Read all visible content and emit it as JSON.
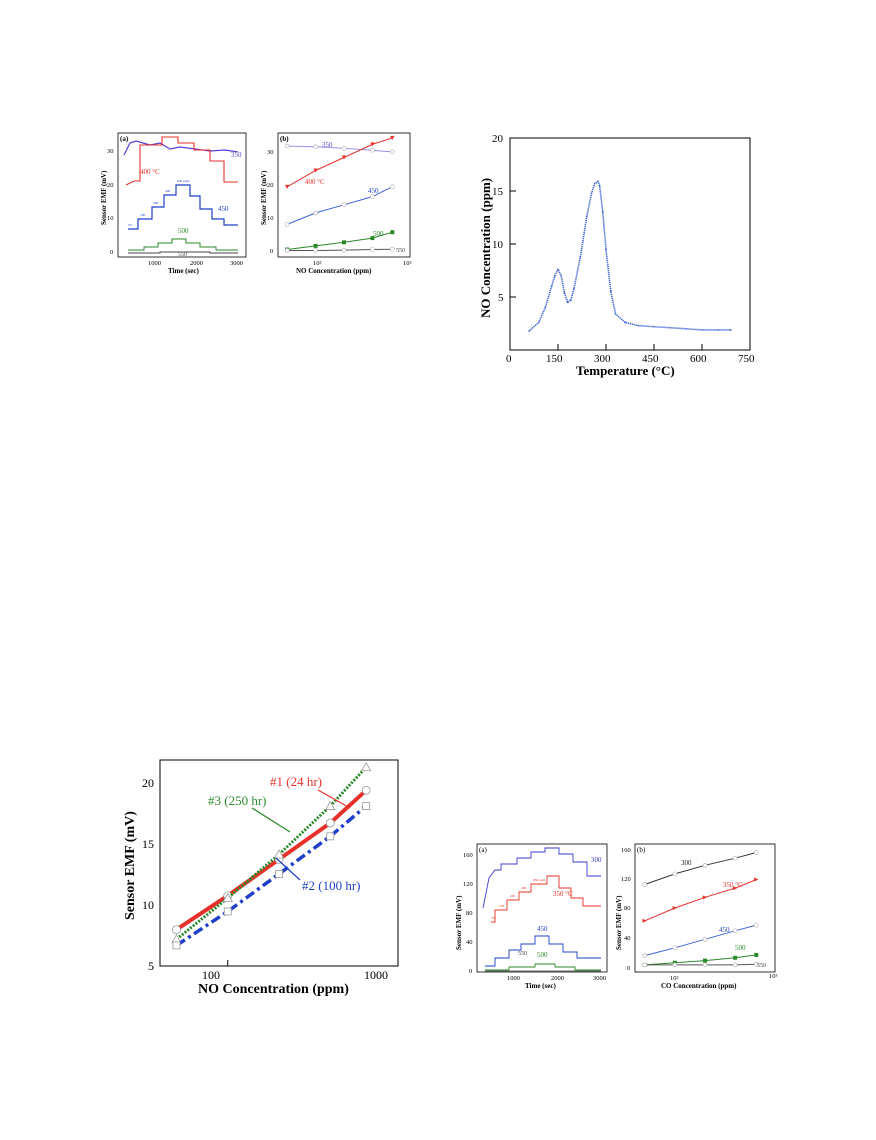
{
  "fig1": {
    "a": {
      "panel_label": "(a)",
      "ylabel": "Sensor EMF (mV)",
      "xlabel": "Time (sec)",
      "xticks": [
        "1000",
        "2000",
        "3000"
      ],
      "yticks": [
        "0",
        "10",
        "20",
        "30"
      ],
      "curve_labels": [
        "350",
        "400 °C",
        "450",
        "500",
        "550"
      ],
      "step_labels": [
        "50",
        "100",
        "200",
        "400",
        "650 ppm"
      ],
      "colors": [
        "#5b3fd6",
        "#e8302a",
        "#1f3fc9",
        "#2a8a2a",
        "#444444"
      ]
    },
    "b": {
      "panel_label": "(b)",
      "ylabel": "Sensor EMF (mV)",
      "xlabel": "NO Concentration (ppm)",
      "xticks": [
        "10²",
        "10³"
      ],
      "yticks": [
        "0",
        "10",
        "20",
        "30"
      ],
      "labels": [
        "350",
        "400 °C",
        "450",
        "500",
        "550"
      ]
    }
  },
  "fig2": {
    "ylabel": "NO Concentration (ppm)",
    "xlabel": "Temperature (°C)",
    "xticks": [
      "0",
      "150",
      "300",
      "450",
      "600",
      "750"
    ],
    "yticks": [
      "5",
      "10",
      "15",
      "20"
    ]
  },
  "fig3": {
    "ylabel": "Sensor EMF (mV)",
    "xlabel": "NO Concentration  (ppm)",
    "xticks": [
      "100",
      "1000"
    ],
    "yticks": [
      "5",
      "10",
      "15",
      "20"
    ],
    "labels": [
      "#1 (24 hr)",
      "#3 (250 hr)",
      "#2 (100 hr)"
    ]
  },
  "fig4": {
    "a": {
      "panel_label": "(a)",
      "ylabel": "Sensor EMF (mV)",
      "xlabel": "Time (sec)",
      "xticks": [
        "1000",
        "2000",
        "3000"
      ],
      "yticks": [
        "0",
        "40",
        "80",
        "120",
        "160"
      ],
      "curve_labels": [
        "300",
        "350 °C",
        "450",
        "500",
        "550"
      ],
      "step_labels": [
        "50",
        "100",
        "200",
        "400",
        "650 ppm"
      ]
    },
    "b": {
      "panel_label": "(b)",
      "ylabel": "Sensor EMF (mV)",
      "xlabel": "CO Concentration (ppm)",
      "xticks": [
        "10²",
        "10³"
      ],
      "yticks": [
        "0",
        "40",
        "80",
        "120",
        "160"
      ],
      "labels": [
        "300",
        "350 °C",
        "450",
        "500",
        "550"
      ]
    }
  },
  "chart_data": [
    {
      "type": "line",
      "id": "fig1b",
      "title": "",
      "xlabel": "NO Concentration (ppm)",
      "ylabel": "Sensor EMF (mV)",
      "xscale": "log",
      "xlim": [
        40,
        1000
      ],
      "ylim": [
        -2,
        36
      ],
      "x": [
        50,
        100,
        200,
        400,
        650
      ],
      "series": [
        {
          "name": "350",
          "values": [
            32,
            31.8,
            31.3,
            30.7,
            30.2
          ],
          "color": "#9e8fe6"
        },
        {
          "name": "400 °C",
          "values": [
            19.5,
            24.5,
            28.5,
            32.5,
            34.5
          ],
          "color": "#e8302a"
        },
        {
          "name": "450",
          "values": [
            8,
            11.5,
            14,
            16.5,
            19.5
          ],
          "color": "#3f62d6"
        },
        {
          "name": "500",
          "values": [
            0.3,
            1.4,
            2.5,
            3.8,
            5.6
          ],
          "color": "#2a8a2a"
        },
        {
          "name": "550",
          "values": [
            0,
            0,
            0.1,
            0.3,
            0.4
          ],
          "color": "#555555"
        }
      ]
    },
    {
      "type": "line",
      "id": "fig2",
      "title": "",
      "xlabel": "Temperature (°C)",
      "ylabel": "NO Concentration (ppm)",
      "xlim": [
        0,
        750
      ],
      "ylim": [
        0,
        20
      ],
      "x": [
        60,
        90,
        110,
        130,
        140,
        150,
        160,
        170,
        180,
        190,
        200,
        220,
        240,
        255,
        265,
        275,
        280,
        290,
        300,
        315,
        330,
        360,
        400,
        450,
        500,
        550,
        600,
        650,
        690
      ],
      "series": [
        {
          "name": "",
          "values": [
            1.8,
            2.6,
            4.0,
            6.0,
            7.0,
            7.6,
            7.0,
            5.4,
            4.5,
            4.7,
            5.8,
            8.8,
            12.6,
            14.8,
            15.7,
            15.9,
            15.5,
            13.0,
            9.5,
            5.5,
            3.4,
            2.6,
            2.3,
            2.2,
            2.1,
            2.0,
            1.9,
            1.9,
            1.9
          ],
          "color": "#3a5ed0"
        }
      ]
    },
    {
      "type": "scatter",
      "id": "fig3",
      "title": "",
      "xlabel": "NO Concentration  (ppm)",
      "ylabel": "Sensor EMF (mV)",
      "xscale": "log",
      "xlim": [
        40,
        1000
      ],
      "ylim": [
        5,
        22
      ],
      "x": [
        50,
        100,
        200,
        400,
        650
      ],
      "series": [
        {
          "name": "#1 (24 hr)",
          "values": [
            8.0,
            10.8,
            13.8,
            16.8,
            19.5
          ],
          "color": "#e8302a"
        },
        {
          "name": "#3 (250 hr)",
          "values": [
            7.2,
            10.6,
            14.2,
            18.2,
            21.4
          ],
          "color": "#2a8a2a"
        },
        {
          "name": "#2 (100 hr)",
          "values": [
            6.7,
            9.5,
            12.6,
            15.7,
            18.2
          ],
          "color": "#1f3fc9"
        }
      ]
    },
    {
      "type": "line",
      "id": "fig4b",
      "title": "",
      "xlabel": "CO Concentration (ppm)",
      "ylabel": "Sensor EMF (mV)",
      "xscale": "log",
      "xlim": [
        40,
        1000
      ],
      "ylim": [
        -10,
        170
      ],
      "x": [
        50,
        100,
        200,
        400,
        650
      ],
      "series": [
        {
          "name": "300",
          "values": [
            113,
            128,
            140,
            150,
            158
          ],
          "color": "#333333"
        },
        {
          "name": "350 °C",
          "values": [
            62,
            80,
            95,
            108,
            120
          ],
          "color": "#e8302a"
        },
        {
          "name": "450",
          "values": [
            13,
            24,
            36,
            48,
            56
          ],
          "color": "#3f62d6"
        },
        {
          "name": "500",
          "values": [
            0,
            3,
            6,
            10,
            14
          ],
          "color": "#2a8a2a"
        },
        {
          "name": "550",
          "values": [
            0,
            0,
            0,
            0,
            1
          ],
          "color": "#555555"
        }
      ]
    }
  ]
}
